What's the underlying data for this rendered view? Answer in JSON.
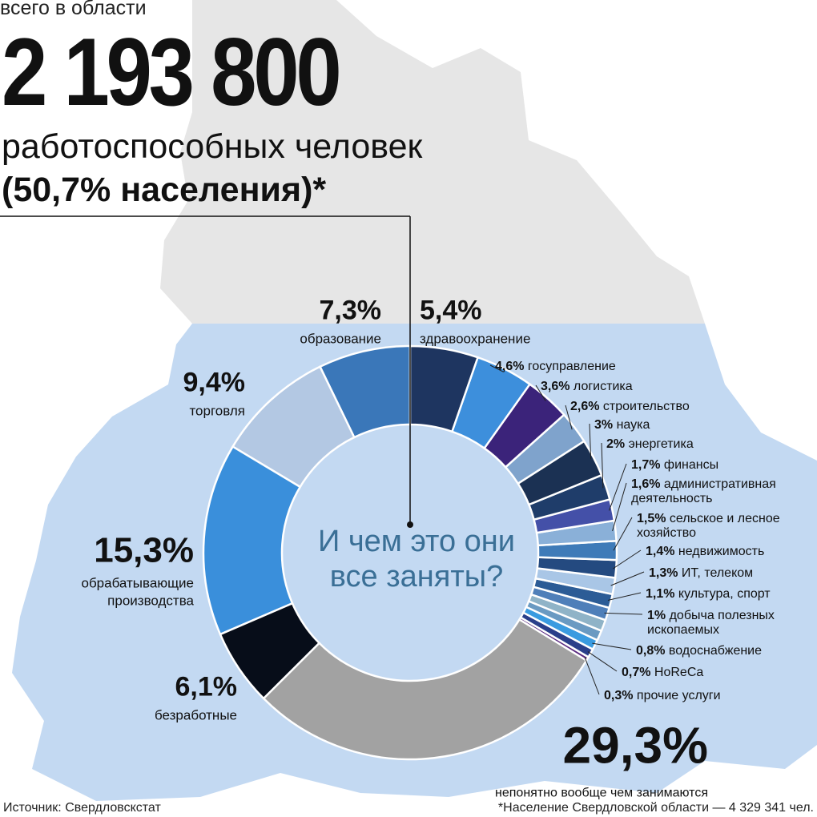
{
  "header": {
    "subtitle": "всего в области",
    "total": "2 193 800",
    "description": "работоспособных человек",
    "share": "(50,7% населения)*"
  },
  "center_text": {
    "line1": "И чем это они",
    "line2": "все заняты?"
  },
  "footer": {
    "source": "Источник: Свердловскстат",
    "note": "*Население Свердловской области — 4 329 341 чел."
  },
  "colors": {
    "map_top": "#e6e6e6",
    "map_bottom": "#c3d9f2",
    "center_text": "#3a6f96"
  },
  "chart_data": {
    "type": "pie",
    "donut": true,
    "segments": [
      {
        "label": "здравоохранение",
        "value_label": "5,4%",
        "value": 5.4,
        "color": "#1e3560"
      },
      {
        "label": "госуправление",
        "value_label": "4,6%",
        "value": 4.6,
        "color": "#3d8fdc"
      },
      {
        "label": "логистика",
        "value_label": "3,6%",
        "value": 3.6,
        "color": "#3b237a"
      },
      {
        "label": "строительство",
        "value_label": "2,6%",
        "value": 2.6,
        "color": "#7fa3cc"
      },
      {
        "label": "наука",
        "value_label": "3%",
        "value": 3.0,
        "color": "#1b3153"
      },
      {
        "label": "энергетика",
        "value_label": "2%",
        "value": 2.0,
        "color": "#1f3d6a"
      },
      {
        "label": "финансы",
        "value_label": "1,7%",
        "value": 1.7,
        "color": "#4450a8"
      },
      {
        "label": "административная деятельность",
        "value_label": "1,6%",
        "value": 1.6,
        "color": "#8ab0d8"
      },
      {
        "label": "сельское и лесное хозяйство",
        "value_label": "1,5%",
        "value": 1.5,
        "color": "#3f7bb8"
      },
      {
        "label": "недвижимость",
        "value_label": "1,4%",
        "value": 1.4,
        "color": "#244a80"
      },
      {
        "label": "ИТ, телеком",
        "value_label": "1,3%",
        "value": 1.3,
        "color": "#a9c6e6"
      },
      {
        "label": "культура, спорт",
        "value_label": "1,1%",
        "value": 1.1,
        "color": "#2c5c96"
      },
      {
        "label": "добыча полезных ископаемых",
        "value_label": "1%",
        "value": 1.0,
        "color": "#4f7fb9"
      },
      {
        "label": "",
        "value_label": "",
        "value": 0.9,
        "color": "#8fb3c7"
      },
      {
        "label": "",
        "value_label": "",
        "value": 0.8,
        "color": "#6a9ac2"
      },
      {
        "label": "водоснабжение",
        "value_label": "0,8%",
        "value": 0.8,
        "color": "#3a9be0"
      },
      {
        "label": "HoReCa",
        "value_label": "0,7%",
        "value": 0.7,
        "color": "#2a3f8a"
      },
      {
        "label": "прочие услуги",
        "value_label": "0,3%",
        "value": 0.3,
        "color": "#5a2a80"
      },
      {
        "label": "непонятно вообще чем занимаются",
        "value_label": "29,3%",
        "value": 29.3,
        "color": "#a2a2a2"
      },
      {
        "label": "безработные",
        "value_label": "6,1%",
        "value": 6.1,
        "color": "#070d19"
      },
      {
        "label": "обрабатывающие производства",
        "value_label": "15,3%",
        "value": 15.3,
        "color": "#3a8fdb"
      },
      {
        "label": "торговля",
        "value_label": "9,4%",
        "value": 9.4,
        "color": "#b3c8e3"
      },
      {
        "label": "образование",
        "value_label": "7,3%",
        "value": 7.3,
        "color": "#3a77b9"
      }
    ]
  }
}
